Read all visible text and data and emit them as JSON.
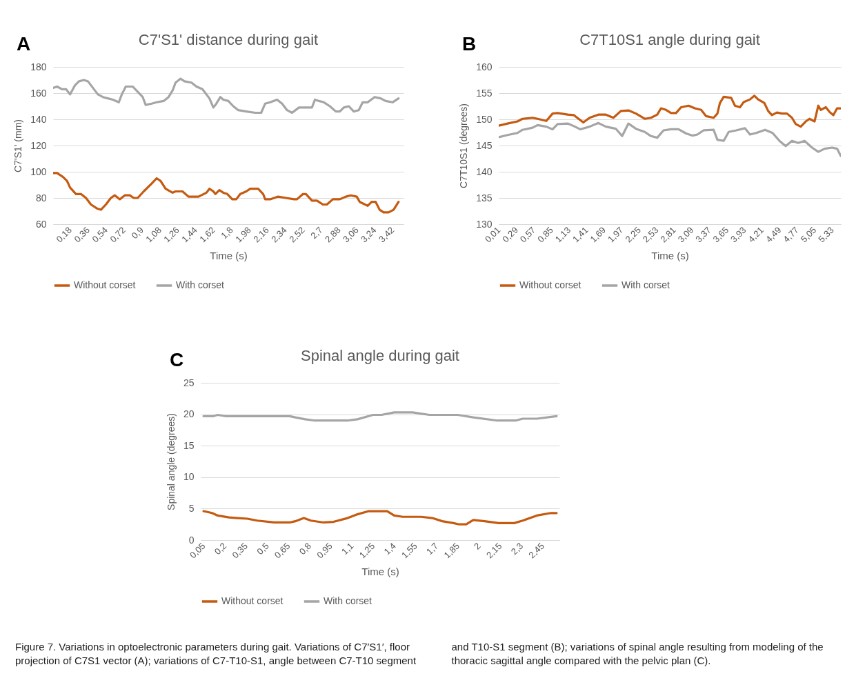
{
  "chart_data": [
    {
      "type": "line",
      "title": "C7'S1' distance during gait",
      "xlabel": "Time (s)",
      "ylabel": "C7'S1' (mm)",
      "annotations": [
        "A"
      ],
      "xlim": [
        0.01,
        3.53
      ],
      "ylim": [
        60,
        180
      ],
      "yticks": [
        60,
        80,
        100,
        120,
        140,
        160,
        180
      ],
      "xticks": [
        {
          "value": 0.18,
          "label": "0,18"
        },
        {
          "value": 0.36,
          "label": "0,36"
        },
        {
          "value": 0.54,
          "label": "0,54"
        },
        {
          "value": 0.72,
          "label": "0,72"
        },
        {
          "value": 0.9,
          "label": "0,9"
        },
        {
          "value": 1.08,
          "label": "1,08"
        },
        {
          "value": 1.26,
          "label": "1,26"
        },
        {
          "value": 1.44,
          "label": "1,44"
        },
        {
          "value": 1.62,
          "label": "1,62"
        },
        {
          "value": 1.8,
          "label": "1,8"
        },
        {
          "value": 1.98,
          "label": "1,98"
        },
        {
          "value": 2.16,
          "label": "2,16"
        },
        {
          "value": 2.34,
          "label": "2,34"
        },
        {
          "value": 2.52,
          "label": "2,52"
        },
        {
          "value": 2.7,
          "label": "2,7"
        },
        {
          "value": 2.88,
          "label": "2,88"
        },
        {
          "value": 3.06,
          "label": "3,06"
        },
        {
          "value": 3.24,
          "label": "3,24"
        },
        {
          "value": 3.42,
          "label": "3,42"
        }
      ],
      "grid": "y",
      "legend": "bottom",
      "series": [
        {
          "name": "Without corset",
          "color": "#c55a11",
          "x": [
            0.01,
            0.05,
            0.11,
            0.15,
            0.18,
            0.24,
            0.29,
            0.34,
            0.39,
            0.45,
            0.49,
            0.54,
            0.59,
            0.63,
            0.68,
            0.73,
            0.78,
            0.82,
            0.86,
            0.92,
            1.0,
            1.05,
            1.09,
            1.14,
            1.21,
            1.24,
            1.31,
            1.37,
            1.47,
            1.55,
            1.58,
            1.62,
            1.64,
            1.68,
            1.72,
            1.76,
            1.81,
            1.85,
            1.89,
            1.95,
            1.99,
            2.07,
            2.12,
            2.14,
            2.19,
            2.27,
            2.35,
            2.43,
            2.46,
            2.52,
            2.55,
            2.61,
            2.66,
            2.72,
            2.76,
            2.82,
            2.89,
            2.95,
            3.0,
            3.06,
            3.09,
            3.17,
            3.21,
            3.25,
            3.29,
            3.33,
            3.38,
            3.43,
            3.48
          ],
          "values": [
            99,
            99,
            96,
            93,
            88,
            83,
            83,
            80,
            75,
            72,
            71,
            75,
            80,
            82,
            79,
            82,
            82,
            80,
            80,
            85,
            91,
            95,
            93,
            87,
            84,
            85,
            85,
            81,
            81,
            84,
            87,
            85,
            83,
            86,
            84,
            83,
            79,
            79,
            83,
            85,
            87,
            87,
            83,
            79,
            79,
            81,
            80,
            79,
            79,
            83,
            83,
            78,
            78,
            75,
            75,
            79,
            79,
            81,
            82,
            81,
            77,
            74,
            77,
            77,
            71,
            69,
            69,
            71,
            77
          ]
        },
        {
          "name": "With corset",
          "color": "#a5a5a5",
          "x": [
            0.01,
            0.05,
            0.1,
            0.14,
            0.18,
            0.23,
            0.27,
            0.32,
            0.36,
            0.41,
            0.46,
            0.51,
            0.56,
            0.61,
            0.67,
            0.7,
            0.74,
            0.81,
            0.86,
            0.91,
            0.94,
            1.0,
            1.05,
            1.12,
            1.17,
            1.21,
            1.24,
            1.29,
            1.33,
            1.4,
            1.45,
            1.51,
            1.58,
            1.62,
            1.65,
            1.69,
            1.72,
            1.77,
            1.82,
            1.87,
            1.95,
            2.04,
            2.1,
            2.14,
            2.19,
            2.26,
            2.31,
            2.36,
            2.41,
            2.48,
            2.55,
            2.61,
            2.64,
            2.68,
            2.73,
            2.79,
            2.85,
            2.89,
            2.93,
            2.98,
            3.03,
            3.08,
            3.12,
            3.17,
            3.24,
            3.3,
            3.35,
            3.42,
            3.48
          ],
          "values": [
            164,
            165,
            163,
            163,
            159,
            166,
            169,
            170,
            169,
            164,
            159,
            157,
            156,
            155,
            153,
            159,
            165,
            165,
            161,
            157,
            151,
            152,
            153,
            154,
            157,
            162,
            168,
            171,
            169,
            168,
            165,
            163,
            156,
            149,
            152,
            157,
            155,
            154,
            150,
            147,
            146,
            145,
            145,
            152,
            153,
            155,
            152,
            147,
            145,
            149,
            149,
            149,
            155,
            154,
            153,
            150,
            146,
            146,
            149,
            150,
            146,
            147,
            153,
            153,
            157,
            156,
            154,
            153,
            156
          ]
        }
      ]
    },
    {
      "type": "line",
      "title": "C7T10S1 angle during gait",
      "xlabel": "Time (s)",
      "ylabel": "C7T10S1 (degrees)",
      "annotations": [
        "B"
      ],
      "xlim": [
        0.01,
        5.47
      ],
      "ylim": [
        130,
        160
      ],
      "yticks": [
        130,
        135,
        140,
        145,
        150,
        155,
        160
      ],
      "xticks": [
        {
          "value": 0.01,
          "label": "0,01"
        },
        {
          "value": 0.29,
          "label": "0,29"
        },
        {
          "value": 0.57,
          "label": "0,57"
        },
        {
          "value": 0.85,
          "label": "0,85"
        },
        {
          "value": 1.13,
          "label": "1,13"
        },
        {
          "value": 1.41,
          "label": "1,41"
        },
        {
          "value": 1.69,
          "label": "1,69"
        },
        {
          "value": 1.97,
          "label": "1,97"
        },
        {
          "value": 2.25,
          "label": "2,25"
        },
        {
          "value": 2.53,
          "label": "2,53"
        },
        {
          "value": 2.81,
          "label": "2,81"
        },
        {
          "value": 3.09,
          "label": "3,09"
        },
        {
          "value": 3.37,
          "label": "3,37"
        },
        {
          "value": 3.65,
          "label": "3,65"
        },
        {
          "value": 3.93,
          "label": "3,93"
        },
        {
          "value": 4.21,
          "label": "4,21"
        },
        {
          "value": 4.49,
          "label": "4,49"
        },
        {
          "value": 4.77,
          "label": "4,77"
        },
        {
          "value": 5.05,
          "label": "5,05"
        },
        {
          "value": 5.33,
          "label": "5,33"
        }
      ],
      "grid": "y",
      "legend": "bottom",
      "series": [
        {
          "name": "Without corset",
          "color": "#c55a11",
          "x": [
            0.01,
            0.15,
            0.31,
            0.39,
            0.55,
            0.63,
            0.77,
            0.87,
            0.95,
            1.11,
            1.21,
            1.36,
            1.46,
            1.6,
            1.72,
            1.84,
            1.96,
            2.08,
            2.2,
            2.34,
            2.44,
            2.54,
            2.6,
            2.68,
            2.76,
            2.84,
            2.92,
            3.04,
            3.14,
            3.24,
            3.32,
            3.44,
            3.5,
            3.54,
            3.6,
            3.72,
            3.78,
            3.86,
            3.92,
            4.02,
            4.09,
            4.15,
            4.25,
            4.31,
            4.37,
            4.45,
            4.53,
            4.61,
            4.69,
            4.75,
            4.83,
            4.91,
            4.97,
            5.05,
            5.11,
            5.15,
            5.23,
            5.29,
            5.35,
            5.41,
            5.47
          ],
          "values": [
            148.8,
            149.2,
            149.6,
            150.1,
            150.3,
            150.1,
            149.7,
            151.1,
            151.2,
            150.9,
            150.8,
            149.4,
            150.3,
            150.9,
            150.9,
            150.3,
            151.6,
            151.7,
            151.1,
            150.1,
            150.3,
            150.9,
            152.1,
            151.8,
            151.2,
            151.2,
            152.3,
            152.6,
            152.1,
            151.8,
            150.6,
            150.3,
            151.1,
            153.1,
            154.3,
            154.1,
            152.6,
            152.3,
            153.3,
            153.8,
            154.5,
            153.8,
            153.1,
            151.6,
            150.8,
            151.3,
            151.1,
            151.1,
            150.3,
            149.1,
            148.6,
            149.6,
            150.1,
            149.6,
            152.6,
            151.8,
            152.3,
            151.4,
            150.8,
            152.1,
            152.1
          ]
        },
        {
          "name": "With corset",
          "color": "#a5a5a5",
          "x": [
            0.01,
            0.15,
            0.31,
            0.39,
            0.55,
            0.63,
            0.77,
            0.87,
            0.95,
            1.11,
            1.21,
            1.31,
            1.46,
            1.6,
            1.72,
            1.88,
            1.98,
            2.08,
            2.2,
            2.34,
            2.44,
            2.54,
            2.64,
            2.76,
            2.88,
            3.0,
            3.1,
            3.18,
            3.28,
            3.44,
            3.5,
            3.6,
            3.68,
            3.8,
            3.94,
            4.02,
            4.12,
            4.26,
            4.38,
            4.49,
            4.59,
            4.69,
            4.79,
            4.89,
            5.01,
            5.11,
            5.21,
            5.33,
            5.41,
            5.47
          ],
          "values": [
            146.6,
            147.0,
            147.4,
            148.0,
            148.4,
            148.9,
            148.6,
            148.1,
            149.1,
            149.2,
            148.7,
            148.1,
            148.6,
            149.3,
            148.6,
            148.2,
            146.8,
            149.2,
            148.2,
            147.6,
            146.8,
            146.5,
            147.9,
            148.1,
            148.1,
            147.3,
            146.9,
            147.1,
            147.9,
            148.0,
            146.1,
            145.9,
            147.6,
            147.9,
            148.3,
            147.1,
            147.4,
            148.0,
            147.4,
            145.9,
            144.9,
            145.9,
            145.5,
            145.9,
            144.6,
            143.8,
            144.4,
            144.6,
            144.4,
            143.0
          ]
        }
      ]
    },
    {
      "type": "line",
      "title": "Spinal angle during gait",
      "xlabel": "Time (s)",
      "ylabel": "Spinal angle (degrees)",
      "annotations": [
        "C",
        "Figure 7. Variations in optoelectronic parameters during gait. Variations of C7′S1′, floor projection of C7S1 vector (A); variations of C7-T10-S1, angle between C7-T10 segment and T10-S1 segment (B); variations of spinal angle resulting from modeling of the thoracic sagittal angle compared with the pelvic plan (C)."
      ],
      "xlim": [
        0.03,
        2.57
      ],
      "ylim": [
        0,
        25
      ],
      "yticks": [
        0,
        5,
        10,
        15,
        20,
        25
      ],
      "xticks": [
        {
          "value": 0.05,
          "label": "0,05"
        },
        {
          "value": 0.2,
          "label": "0,2"
        },
        {
          "value": 0.35,
          "label": "0,35"
        },
        {
          "value": 0.5,
          "label": "0,5"
        },
        {
          "value": 0.65,
          "label": "0,65"
        },
        {
          "value": 0.8,
          "label": "0,8"
        },
        {
          "value": 0.95,
          "label": "0,95"
        },
        {
          "value": 1.1,
          "label": "1,1"
        },
        {
          "value": 1.25,
          "label": "1,25"
        },
        {
          "value": 1.4,
          "label": "1,4"
        },
        {
          "value": 1.55,
          "label": "1,55"
        },
        {
          "value": 1.7,
          "label": "1,7"
        },
        {
          "value": 1.85,
          "label": "1,85"
        },
        {
          "value": 2,
          "label": "2"
        },
        {
          "value": 2.15,
          "label": "2,15"
        },
        {
          "value": 2.3,
          "label": "2,3"
        },
        {
          "value": 2.45,
          "label": "2,45"
        }
      ],
      "grid": "y",
      "legend": "bottom",
      "series": [
        {
          "name": "Without corset",
          "color": "#c55a11",
          "x": [
            0.05,
            0.11,
            0.15,
            0.23,
            0.29,
            0.36,
            0.43,
            0.55,
            0.66,
            0.7,
            0.76,
            0.81,
            0.9,
            0.97,
            1.07,
            1.14,
            1.22,
            1.35,
            1.4,
            1.46,
            1.59,
            1.67,
            1.74,
            1.82,
            1.86,
            1.91,
            1.96,
            2.04,
            2.14,
            2.25,
            2.31,
            2.41,
            2.51,
            2.55
          ],
          "values": [
            4.6,
            4.3,
            3.9,
            3.6,
            3.5,
            3.4,
            3.1,
            2.8,
            2.8,
            3.0,
            3.5,
            3.1,
            2.8,
            2.9,
            3.5,
            4.1,
            4.6,
            4.6,
            3.9,
            3.7,
            3.7,
            3.5,
            3.0,
            2.7,
            2.5,
            2.5,
            3.2,
            3.0,
            2.7,
            2.7,
            3.1,
            3.9,
            4.3,
            4.3
          ]
        },
        {
          "name": "With corset",
          "color": "#a5a5a5",
          "x": [
            0.05,
            0.12,
            0.15,
            0.21,
            0.66,
            0.7,
            0.77,
            0.84,
            1.07,
            1.14,
            1.25,
            1.31,
            1.4,
            1.53,
            1.65,
            1.85,
            1.96,
            2.13,
            2.26,
            2.31,
            2.41,
            2.55
          ],
          "values": [
            19.7,
            19.7,
            19.9,
            19.7,
            19.7,
            19.5,
            19.2,
            19.0,
            19.0,
            19.2,
            19.9,
            19.9,
            20.3,
            20.3,
            19.9,
            19.9,
            19.5,
            19.0,
            19.0,
            19.3,
            19.3,
            19.7
          ]
        }
      ]
    }
  ]
}
